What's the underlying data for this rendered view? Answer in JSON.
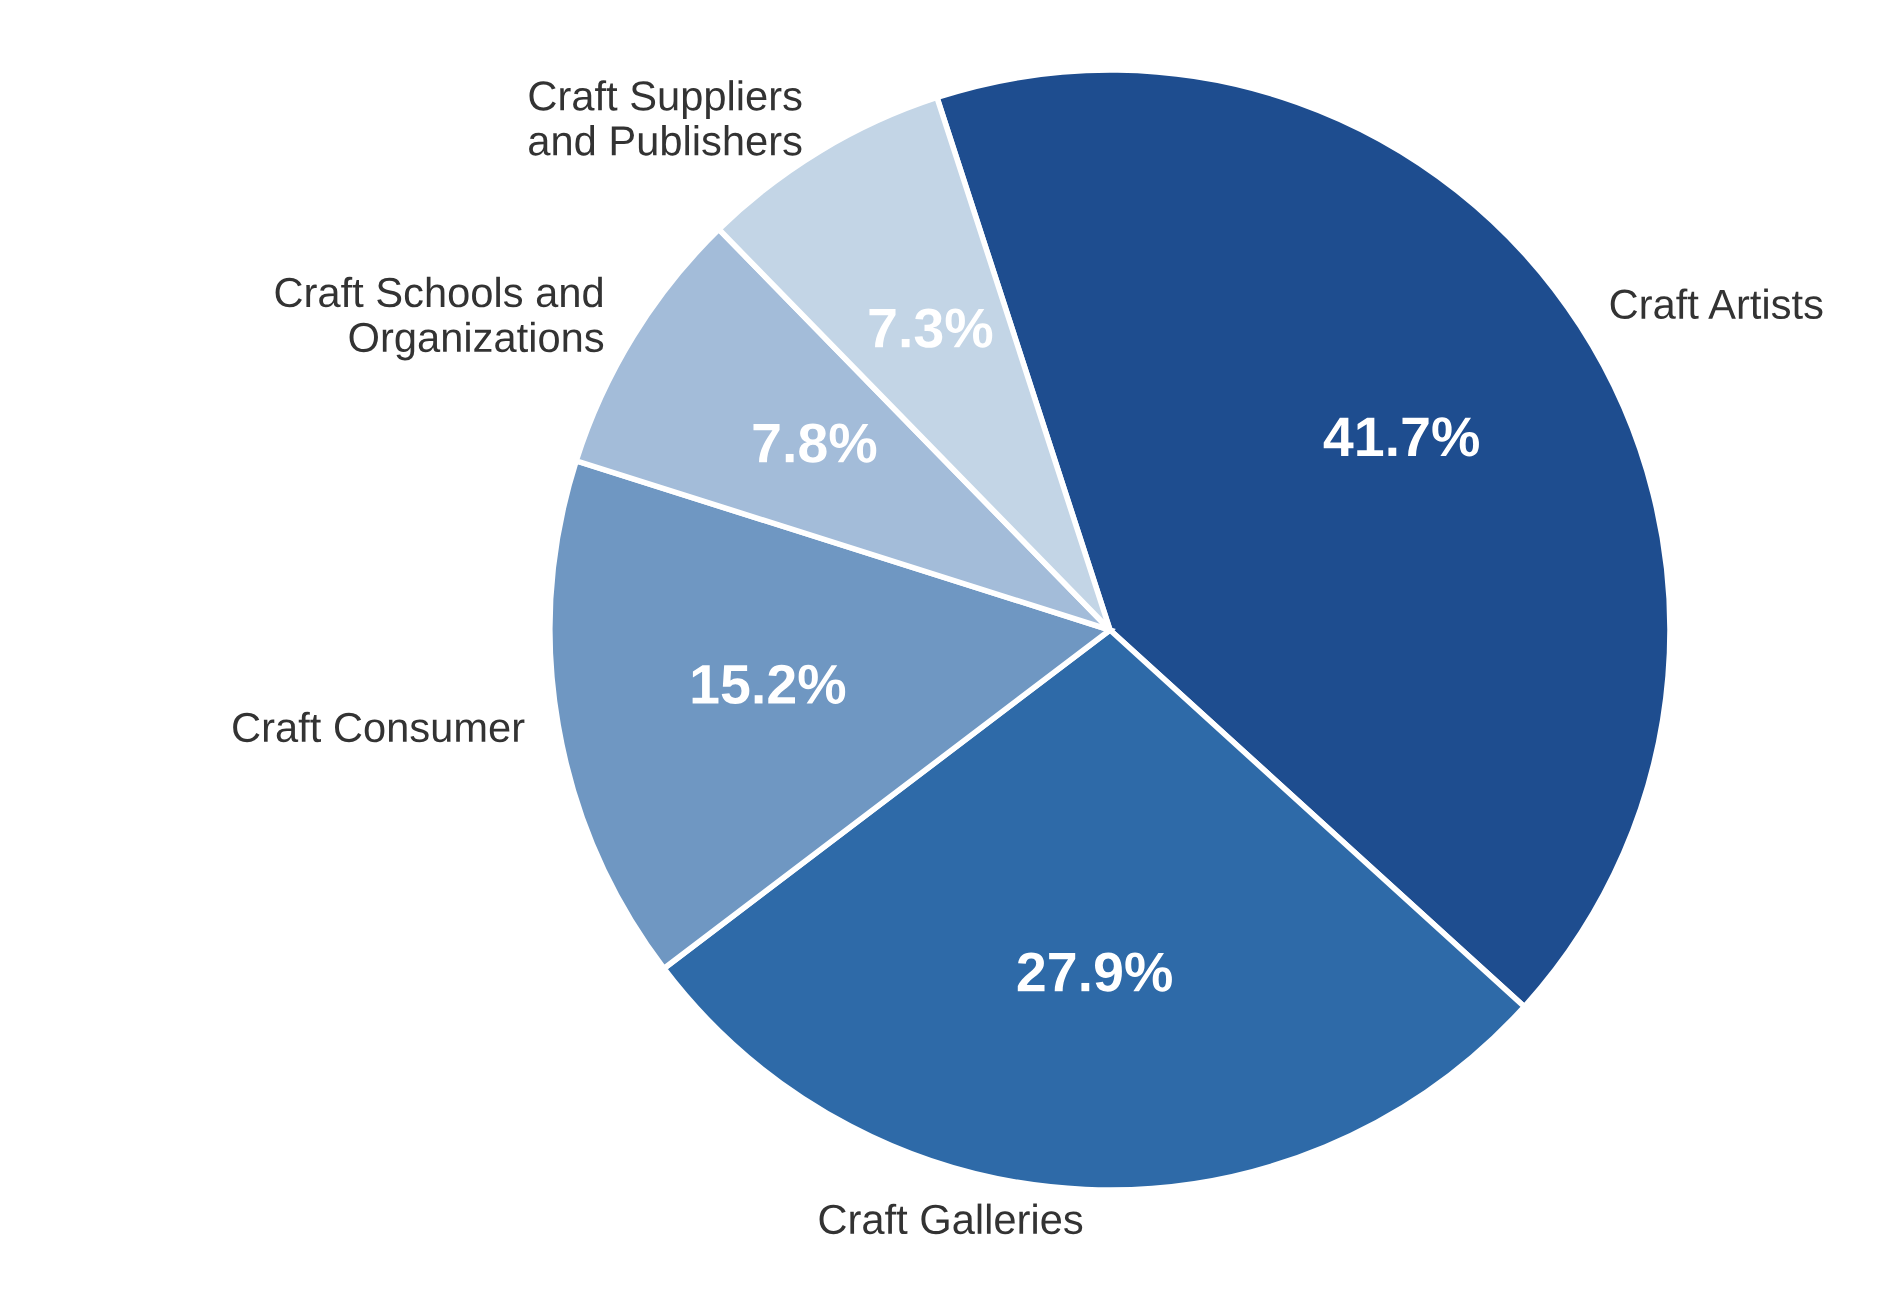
{
  "chart_data": {
    "type": "pie",
    "categories": [
      "Craft Artists",
      "Craft Galleries",
      "Craft Consumer",
      "Craft Schools and\nOrganizations",
      "Craft Suppliers\nand Publishers"
    ],
    "values": [
      41.7,
      27.9,
      15.2,
      7.8,
      7.3
    ],
    "colors": [
      "#1e4d8f",
      "#2e6aa8",
      "#6f97c2",
      "#a3bcd9",
      "#c3d5e6"
    ],
    "value_labels": [
      "41.7%",
      "27.9%",
      "15.2%",
      "7.8%",
      "7.3%"
    ]
  }
}
